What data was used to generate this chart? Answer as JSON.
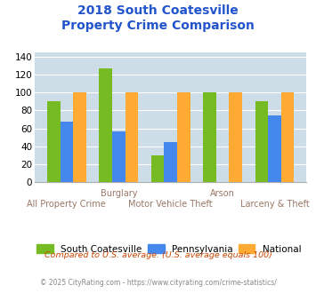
{
  "title_line1": "2018 South Coatesville",
  "title_line2": "Property Crime Comparison",
  "categories": [
    "All Property Crime",
    "Burglary",
    "Motor Vehicle Theft",
    "Arson",
    "Larceny & Theft"
  ],
  "cat_labels_top": [
    "",
    "Burglary",
    "",
    "Arson",
    ""
  ],
  "cat_labels_bottom": [
    "All Property Crime",
    "",
    "Motor Vehicle Theft",
    "",
    "Larceny & Theft"
  ],
  "south_coatesville": [
    90,
    127,
    30,
    100,
    90
  ],
  "pennsylvania": [
    68,
    57,
    45,
    0,
    74
  ],
  "national": [
    100,
    100,
    100,
    100,
    100
  ],
  "color_sc": "#77bb22",
  "color_pa": "#4488ee",
  "color_nat": "#ffaa33",
  "ylim": [
    0,
    145
  ],
  "yticks": [
    0,
    20,
    40,
    60,
    80,
    100,
    120,
    140
  ],
  "bg_color": "#ccdde8",
  "legend_sc": "South Coatesville",
  "legend_pa": "Pennsylvania",
  "legend_nat": "National",
  "footer1": "Compared to U.S. average. (U.S. average equals 100)",
  "footer2": "© 2025 CityRating.com - https://www.cityrating.com/crime-statistics/",
  "title_color": "#2255cc",
  "footer1_color": "#cc4400",
  "footer2_color": "#888888",
  "xlabel_color": "#997766"
}
